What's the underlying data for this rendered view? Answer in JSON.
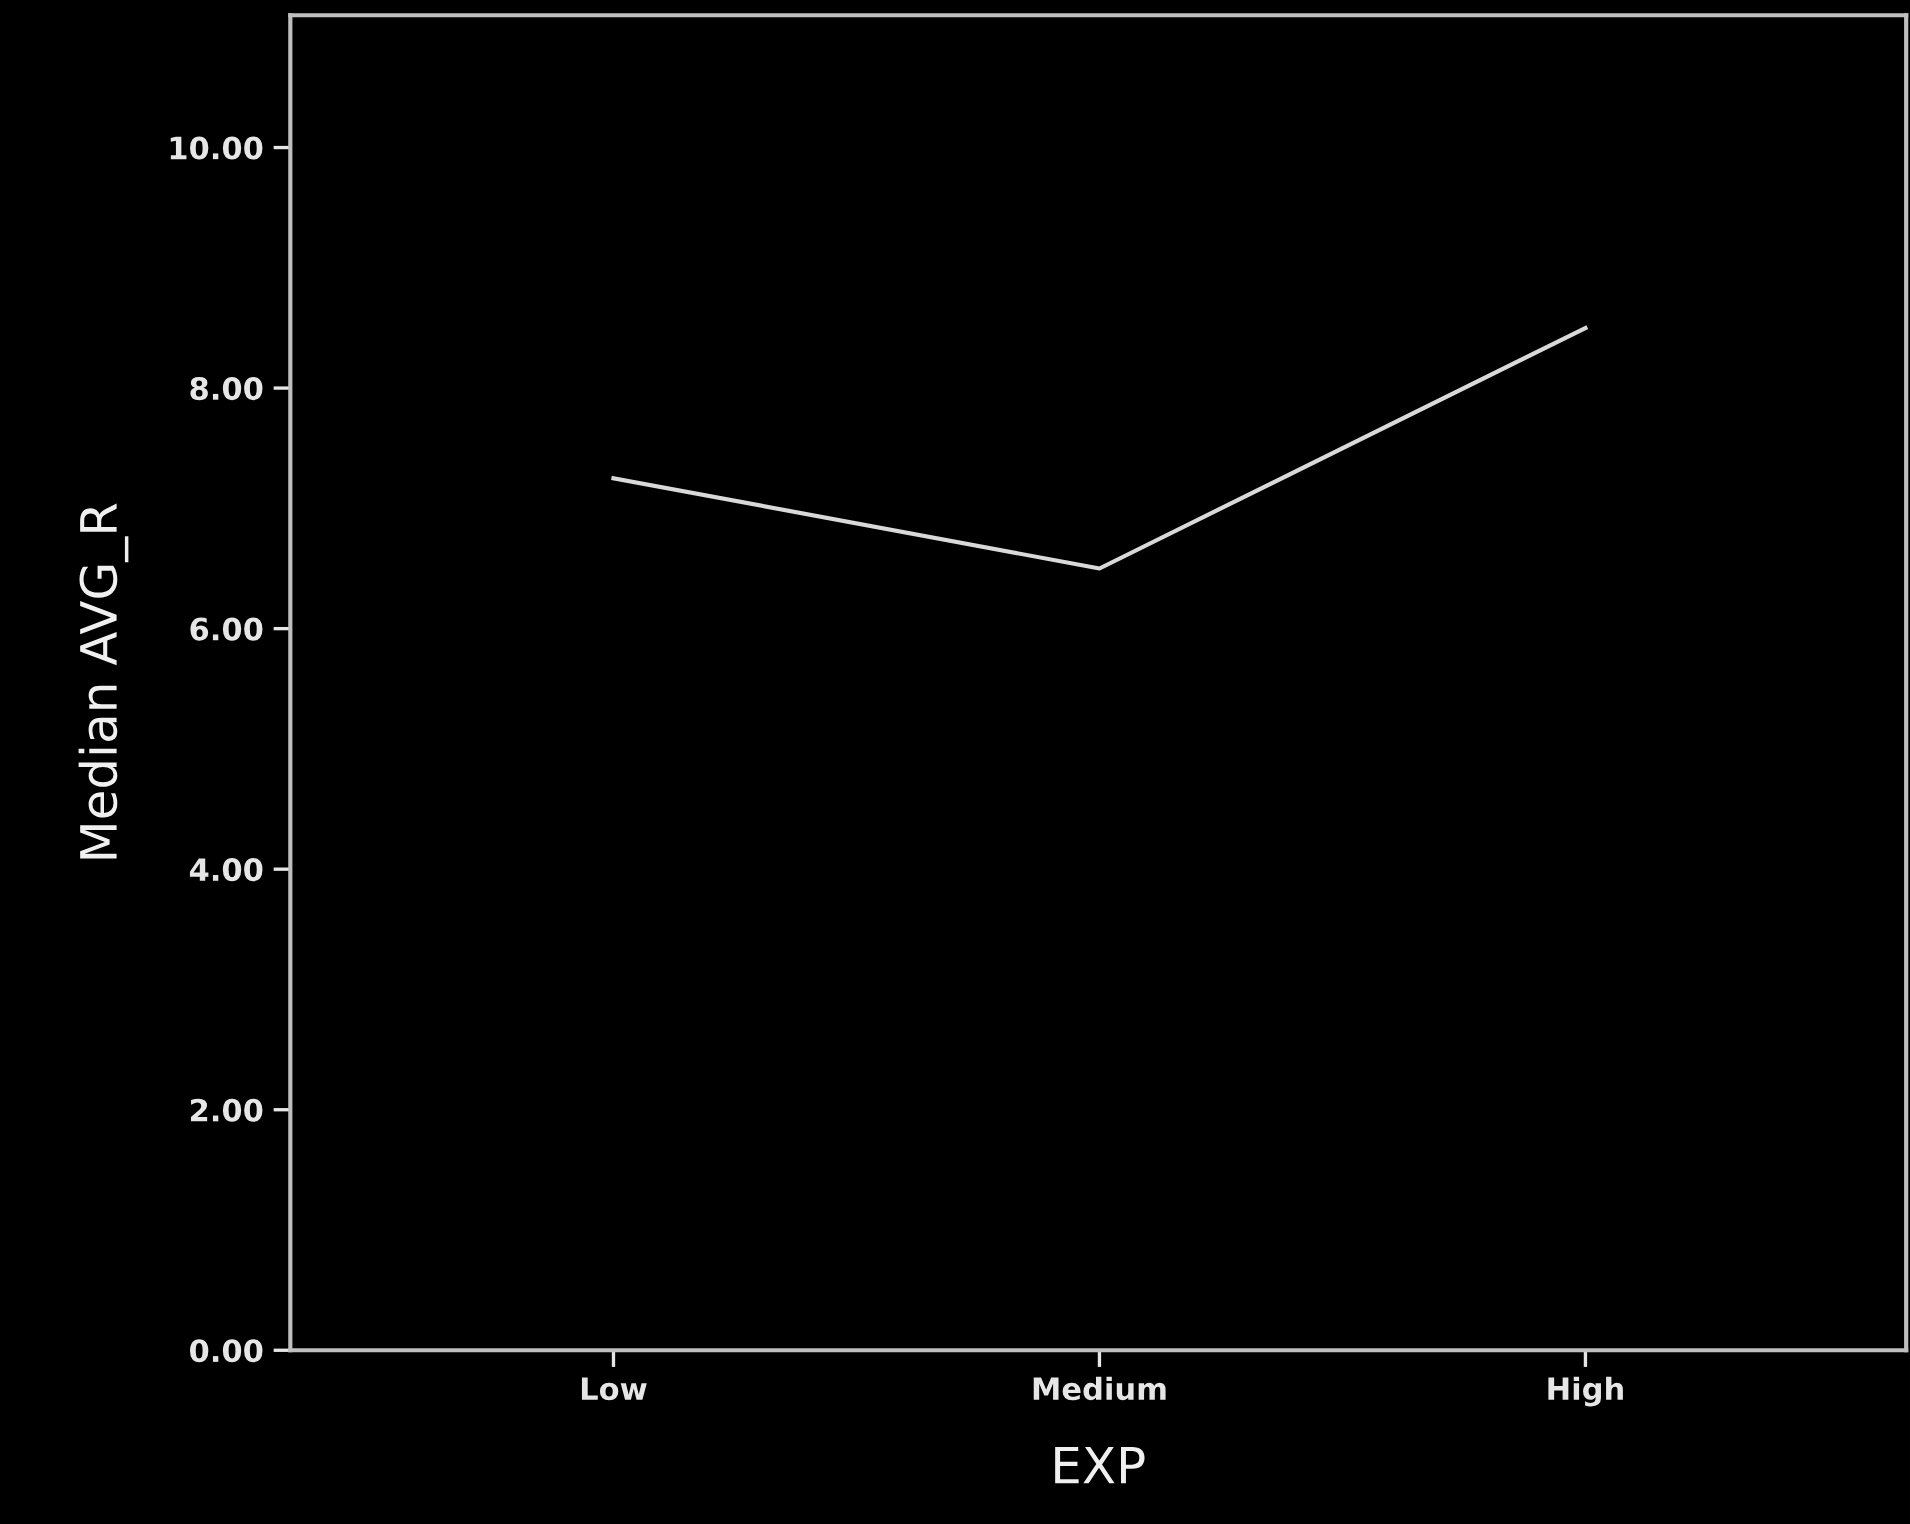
{
  "chart_data": {
    "type": "line",
    "xlabel": "EXP",
    "ylabel": "Median AVG_R",
    "categories": [
      "Low",
      "Medium",
      "High"
    ],
    "series": [
      {
        "color": "#d9d9d9",
        "values": [
          7.25,
          6.5,
          8.5
        ]
      }
    ],
    "ylim": [
      0,
      11.1
    ],
    "yticks": [
      {
        "value": 0,
        "label": "0.00"
      },
      {
        "value": 2,
        "label": "2.00"
      },
      {
        "value": 4,
        "label": "4.00"
      },
      {
        "value": 6,
        "label": "6.00"
      },
      {
        "value": 8,
        "label": "8.00"
      },
      {
        "value": 10,
        "label": "10.00"
      }
    ],
    "grid": false,
    "legend": false,
    "marker": "none",
    "line_style": "solid"
  }
}
